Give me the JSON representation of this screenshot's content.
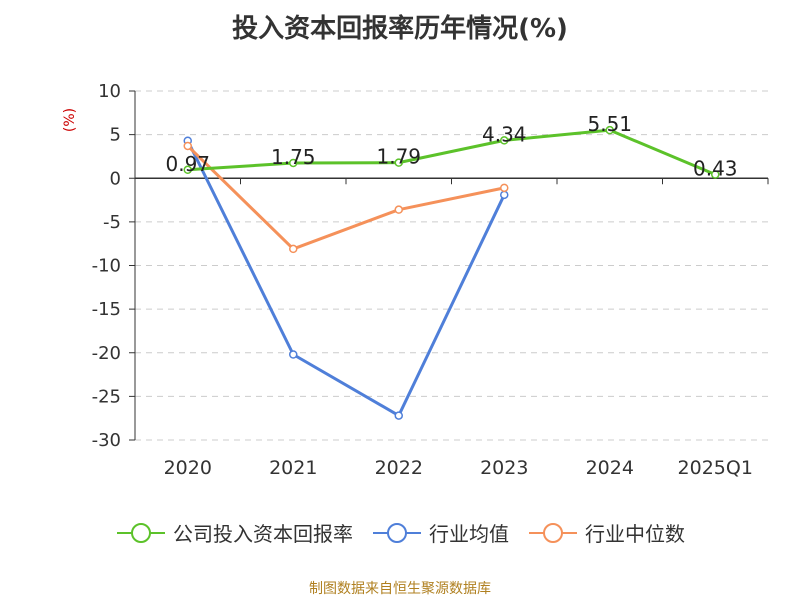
{
  "title": "投入资本回报率历年情况(%)",
  "unit_label": "(%)",
  "footer": "制图数据来自恒生聚源数据库",
  "chart_data": {
    "type": "line",
    "categories": [
      "2020",
      "2021",
      "2022",
      "2023",
      "2024",
      "2025Q1"
    ],
    "ylim": [
      -30,
      10
    ],
    "yticks": [
      10,
      5,
      0,
      -5,
      -10,
      -15,
      -20,
      -25,
      -30
    ],
    "grid": true,
    "legend_position": "bottom",
    "series": [
      {
        "name": "公司投入资本回报率",
        "color": "#5cc22a",
        "values": [
          0.97,
          1.75,
          1.79,
          4.34,
          5.51,
          0.43
        ],
        "labels": [
          "0.97",
          "1.75",
          "1.79",
          "4.34",
          "5.51",
          "0.43"
        ]
      },
      {
        "name": "行业均值",
        "color": "#4f7fd9",
        "values": [
          4.3,
          -20.2,
          -27.2,
          -1.9,
          null,
          null
        ]
      },
      {
        "name": "行业中位数",
        "color": "#f5915a",
        "values": [
          3.7,
          -8.1,
          -3.6,
          -1.1,
          null,
          null
        ]
      }
    ]
  }
}
